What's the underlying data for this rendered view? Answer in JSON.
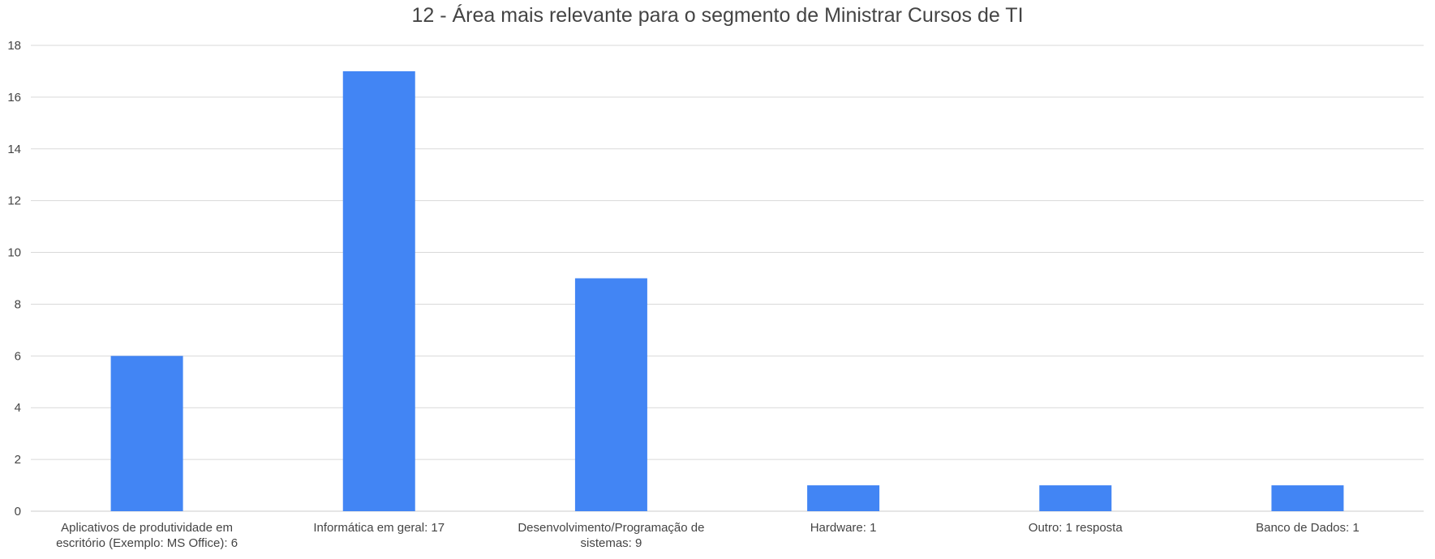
{
  "chart_data": {
    "type": "bar",
    "title": "12 - Área mais relevante para o segmento de Ministrar Cursos de TI",
    "xlabel": "",
    "ylabel": "",
    "categories": [
      [
        "Aplicativos de produtividade em",
        "escritório (Exemplo: MS Office): 6"
      ],
      [
        "Informática em geral: 17"
      ],
      [
        "Desenvolvimento/Programação de",
        "sistemas: 9"
      ],
      [
        "Hardware: 1"
      ],
      [
        "Outro: 1 resposta"
      ],
      [
        "Banco de Dados: 1"
      ]
    ],
    "values": [
      6,
      17,
      9,
      1,
      1,
      1
    ],
    "ylim": [
      0,
      18
    ],
    "yticks": [
      0,
      2,
      4,
      6,
      8,
      10,
      12,
      14,
      16,
      18
    ],
    "grid": true,
    "legend": "none",
    "colors": {
      "bar": "#4285f4",
      "grid": "#d9d9d9",
      "baseline": "#cccccc",
      "text": "#444444"
    }
  }
}
